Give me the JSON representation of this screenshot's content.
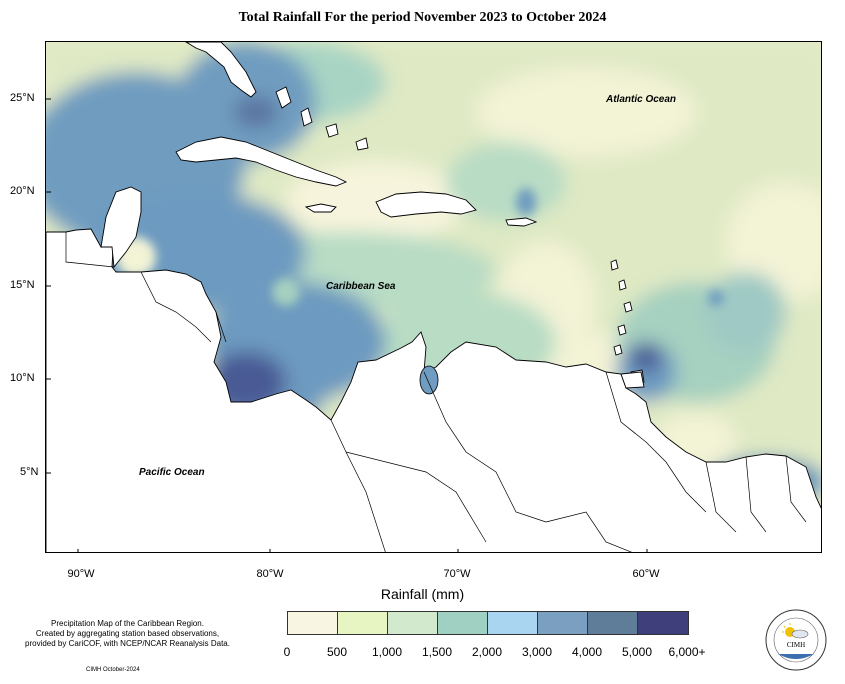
{
  "title": "Total Rainfall For the period November 2023 to October 2024",
  "map": {
    "latitude_labels": [
      "25°N",
      "20°N",
      "15°N",
      "10°N",
      "5°N"
    ],
    "longitude_labels": [
      "90°W",
      "80°W",
      "70°W",
      "60°W"
    ],
    "region_labels": {
      "atlantic": "Atlantic Ocean",
      "caribbean": "Caribbean Sea",
      "pacific": "Pacific Ocean"
    }
  },
  "legend": {
    "title": "Rainfall (mm)",
    "colors": [
      "#f8f6e2",
      "#e6f5c2",
      "#d2e9cd",
      "#9fd0c1",
      "#a9d5f0",
      "#7b9fc0",
      "#5f7c98",
      "#3f3f7c"
    ],
    "ticks": [
      "0",
      "500",
      "1,000",
      "1,500",
      "2,000",
      "3,000",
      "4,000",
      "5,000",
      "6,000+"
    ]
  },
  "footnote": {
    "lines": [
      "Precipitation Map of the Caribbean Region.",
      "Created by aggregating station based observations,",
      "provided by CariCOF, with NCEP/NCAR Reanalysis Data."
    ],
    "credit": "CIMH October-2024"
  },
  "logo": {
    "text": "CIMH",
    "icon": "sun-cloud-icon"
  }
}
